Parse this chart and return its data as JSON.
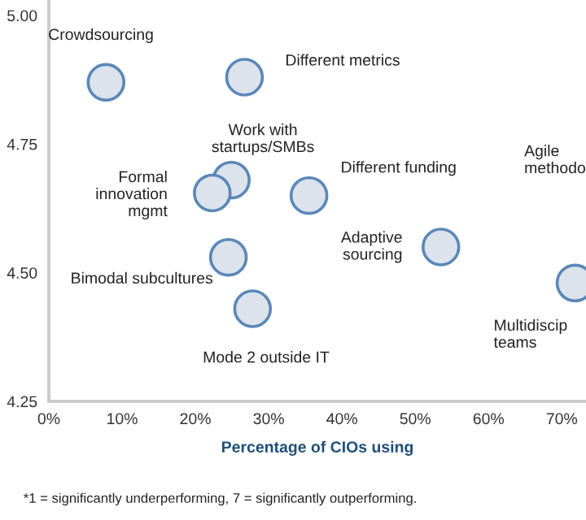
{
  "chart_data": {
    "type": "scatter",
    "xlabel": "Percentage of CIOs using",
    "x": [
      7.8,
      26.7,
      24.9,
      22.3,
      35.5,
      53.5,
      71.8,
      24.5,
      27.8
    ],
    "series": [
      {
        "color": "#dce3ec",
        "values": [
          4.87,
          4.88,
          4.68,
          4.655,
          4.65,
          4.55,
          4.48,
          4.53,
          4.43
        ]
      }
    ],
    "marker": "circle",
    "xlim": [
      0,
      73.3
    ],
    "ylim": [
      4.25,
      5.03
    ],
    "xticks": [
      {
        "value": 0,
        "label": "0%"
      },
      {
        "value": 10,
        "label": "10%"
      },
      {
        "value": 20,
        "label": "20%"
      },
      {
        "value": 30,
        "label": "30%"
      },
      {
        "value": 40,
        "label": "40%"
      },
      {
        "value": 50,
        "label": "50%"
      },
      {
        "value": 60,
        "label": "60%"
      },
      {
        "value": 70,
        "label": "70%"
      }
    ],
    "yticks": [
      {
        "value": 4.25,
        "label": "4.25"
      },
      {
        "value": 4.5,
        "label": "4.50"
      },
      {
        "value": 4.75,
        "label": "4.75"
      },
      {
        "value": 5.0,
        "label": "5.00"
      }
    ],
    "grid": false,
    "annotations": [
      "Crowdsourcing",
      {
        "text": "Different metrics",
        "x": 26.7,
        "y": 4.88
      },
      {
        "text": "Work with\nstartups/SMBs",
        "x": 24.9,
        "y": 4.68
      },
      "Formal\ninnovation\nmgmt",
      {
        "text": "Different funding",
        "x": 35.5,
        "y": 4.65
      },
      {
        "text": "Adaptive\nsourcing",
        "x": 53.5,
        "y": 4.55
      },
      {
        "text": "Multidiscip\nteams",
        "x": 71.8,
        "y": 4.48
      },
      "Bimodal subcultures",
      {
        "text": "Mode 2 outside IT",
        "x": 27.8,
        "y": 4.43
      },
      "Agile\nmethodo",
      "*1 = significantly underperforming, 7 = significantly outperforming."
    ]
  }
}
